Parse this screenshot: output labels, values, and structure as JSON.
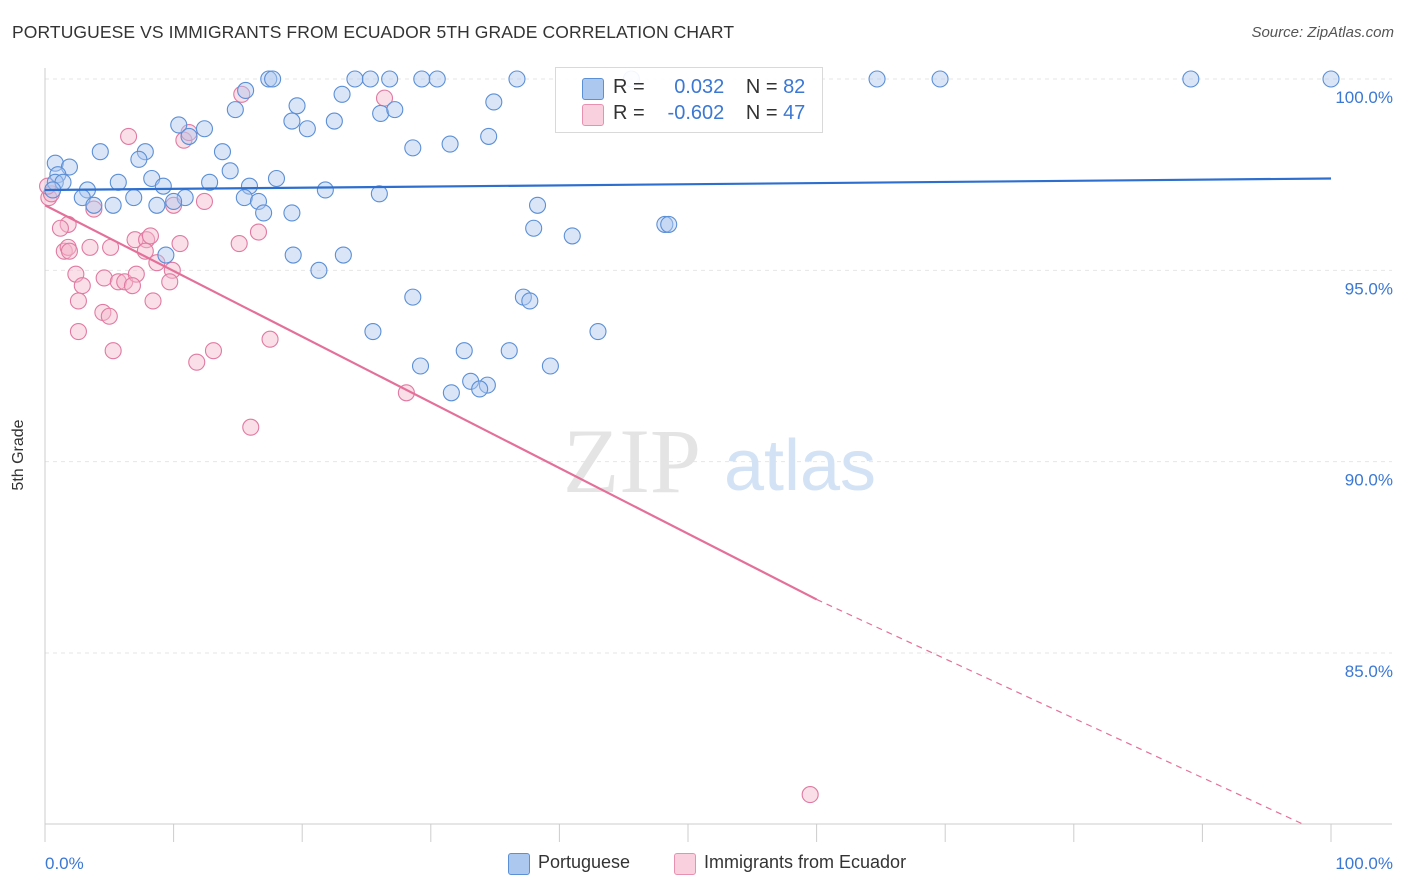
{
  "title": "PORTUGUESE VS IMMIGRANTS FROM ECUADOR 5TH GRADE CORRELATION CHART",
  "source": "Source: ZipAtlas.com",
  "watermark": {
    "zip": "ZIP",
    "atlas": "atlas"
  },
  "legend_top": {
    "rows": [
      {
        "r_label": "R =",
        "r_value": "0.032",
        "n_label": "N =",
        "n_value": "82"
      },
      {
        "r_label": "R =",
        "r_value": "-0.602",
        "n_label": "N =",
        "n_value": "47"
      }
    ]
  },
  "legend_bottom": [
    "Portuguese",
    "Immigrants from Ecuador"
  ],
  "colors": {
    "blue_fill": "#adc8ef",
    "blue_stroke": "#5b8fd6",
    "blue_line": "#2e6fce",
    "pink_fill": "#f5b8cb",
    "pink_stroke": "#e07aa0",
    "pink_line": "#e4709a",
    "axis_text": "#3b78d4",
    "grid": "#e6e6e6"
  },
  "chart_data": {
    "type": "scatter",
    "xlabel": "",
    "ylabel": "5th Grade",
    "xlim": [
      0,
      100
    ],
    "ylim": [
      80.5,
      100.8
    ],
    "x_tick_labels": [
      "0.0%",
      "100.0%"
    ],
    "y_ticks": [
      85,
      90,
      95,
      100
    ],
    "y_tick_labels": [
      "85.0%",
      "90.0%",
      "95.0%",
      "100.0%"
    ],
    "grid": true,
    "series": [
      {
        "name": "Portuguese",
        "color": "blue",
        "points": [
          [
            17.4,
            100
          ],
          [
            17.7,
            100
          ],
          [
            24.1,
            100
          ],
          [
            25.3,
            100
          ],
          [
            26.8,
            100
          ],
          [
            29.3,
            100
          ],
          [
            30.5,
            100
          ],
          [
            36.7,
            100
          ],
          [
            45.6,
            100
          ],
          [
            64.7,
            100
          ],
          [
            69.6,
            100
          ],
          [
            89.1,
            100
          ],
          [
            100,
            100
          ],
          [
            15.6,
            99.7
          ],
          [
            14.8,
            99.2
          ],
          [
            19.6,
            99.3
          ],
          [
            23.1,
            99.6
          ],
          [
            26.1,
            99.1
          ],
          [
            27.2,
            99.2
          ],
          [
            34.9,
            99.4
          ],
          [
            19.2,
            98.9
          ],
          [
            20.4,
            98.7
          ],
          [
            22.5,
            98.9
          ],
          [
            10.4,
            98.8
          ],
          [
            12.4,
            98.7
          ],
          [
            11.2,
            98.5
          ],
          [
            34.5,
            98.5
          ],
          [
            31.5,
            98.3
          ],
          [
            28.6,
            98.2
          ],
          [
            4.3,
            98.1
          ],
          [
            7.8,
            98.1
          ],
          [
            13.8,
            98.1
          ],
          [
            7.3,
            97.9
          ],
          [
            0.8,
            97.8
          ],
          [
            1.9,
            97.7
          ],
          [
            14.4,
            97.6
          ],
          [
            1.0,
            97.5
          ],
          [
            0.8,
            97.3
          ],
          [
            1.4,
            97.3
          ],
          [
            5.7,
            97.3
          ],
          [
            8.3,
            97.4
          ],
          [
            12.8,
            97.3
          ],
          [
            18.0,
            97.4
          ],
          [
            3.3,
            97.1
          ],
          [
            9.2,
            97.2
          ],
          [
            15.9,
            97.2
          ],
          [
            2.9,
            96.9
          ],
          [
            6.9,
            96.9
          ],
          [
            10.9,
            96.9
          ],
          [
            15.5,
            96.9
          ],
          [
            3.8,
            96.7
          ],
          [
            5.3,
            96.7
          ],
          [
            8.7,
            96.7
          ],
          [
            10.0,
            96.8
          ],
          [
            16.6,
            96.8
          ],
          [
            19.2,
            96.5
          ],
          [
            38.3,
            96.7
          ],
          [
            38.0,
            96.1
          ],
          [
            41.0,
            95.9
          ],
          [
            48.2,
            96.2
          ],
          [
            48.5,
            96.2
          ],
          [
            9.4,
            95.4
          ],
          [
            19.3,
            95.4
          ],
          [
            23.2,
            95.4
          ],
          [
            21.3,
            95.0
          ],
          [
            28.6,
            94.3
          ],
          [
            37.2,
            94.3
          ],
          [
            37.7,
            94.2
          ],
          [
            25.5,
            93.4
          ],
          [
            43.0,
            93.4
          ],
          [
            32.6,
            92.9
          ],
          [
            36.1,
            92.9
          ],
          [
            29.2,
            92.5
          ],
          [
            39.3,
            92.5
          ],
          [
            33.1,
            92.1
          ],
          [
            34.4,
            92.0
          ],
          [
            31.6,
            91.8
          ],
          [
            33.8,
            91.9
          ],
          [
            0.6,
            97.1
          ],
          [
            21.8,
            97.1
          ],
          [
            26.0,
            97.0
          ],
          [
            17.0,
            96.5
          ]
        ]
      },
      {
        "name": "Immigrants from Ecuador",
        "color": "pink",
        "points": [
          [
            15.3,
            99.6
          ],
          [
            26.4,
            99.5
          ],
          [
            6.5,
            98.5
          ],
          [
            10.8,
            98.4
          ],
          [
            11.2,
            98.6
          ],
          [
            0.3,
            96.9
          ],
          [
            0.5,
            97.0
          ],
          [
            0.2,
            97.2
          ],
          [
            3.8,
            96.6
          ],
          [
            10.0,
            96.7
          ],
          [
            12.4,
            96.8
          ],
          [
            1.8,
            96.2
          ],
          [
            1.2,
            96.1
          ],
          [
            3.5,
            95.6
          ],
          [
            5.1,
            95.6
          ],
          [
            1.5,
            95.5
          ],
          [
            1.8,
            95.6
          ],
          [
            1.9,
            95.5
          ],
          [
            7.0,
            95.8
          ],
          [
            7.9,
            95.8
          ],
          [
            8.2,
            95.9
          ],
          [
            10.5,
            95.7
          ],
          [
            15.1,
            95.7
          ],
          [
            16.6,
            96.0
          ],
          [
            7.8,
            95.5
          ],
          [
            8.7,
            95.2
          ],
          [
            9.9,
            95.0
          ],
          [
            2.4,
            94.9
          ],
          [
            4.6,
            94.8
          ],
          [
            5.7,
            94.7
          ],
          [
            6.2,
            94.7
          ],
          [
            7.1,
            94.9
          ],
          [
            6.8,
            94.6
          ],
          [
            9.7,
            94.7
          ],
          [
            2.9,
            94.6
          ],
          [
            2.6,
            94.2
          ],
          [
            8.4,
            94.2
          ],
          [
            4.5,
            93.9
          ],
          [
            5.0,
            93.8
          ],
          [
            2.6,
            93.4
          ],
          [
            17.5,
            93.2
          ],
          [
            5.3,
            92.9
          ],
          [
            13.1,
            92.9
          ],
          [
            11.8,
            92.6
          ],
          [
            28.1,
            91.8
          ],
          [
            16.0,
            90.9
          ],
          [
            59.5,
            81.3
          ]
        ]
      }
    ],
    "trend_lines": [
      {
        "series": "Portuguese",
        "x0": 0,
        "y0": 97.1,
        "x1": 100,
        "y1": 97.4
      },
      {
        "series": "Immigrants from Ecuador",
        "x0": 0,
        "y0": 96.7,
        "x1": 60,
        "y1": 86.4,
        "dashed_to_x": 98,
        "dashed_to_y": 80.5
      }
    ]
  }
}
